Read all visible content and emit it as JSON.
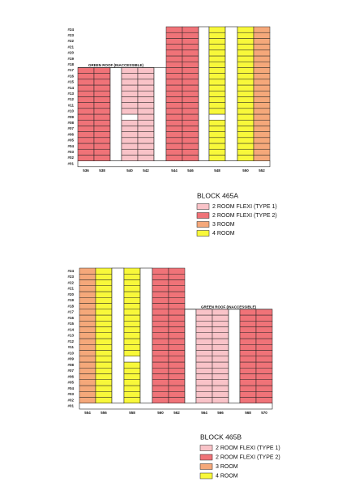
{
  "blocks": [
    {
      "floors": [
        "#24",
        "#23",
        "#22",
        "#21",
        "#20",
        "#19",
        "#18",
        "#17",
        "#16",
        "#15",
        "#14",
        "#13",
        "#12",
        "#11",
        "#10",
        "#09",
        "#08",
        "#07",
        "#06",
        "#05",
        "#04",
        "#03",
        "#02",
        "#01"
      ],
      "units": [
        "536",
        "538",
        "540",
        "542",
        "544",
        "546",
        "548",
        "550",
        "552"
      ],
      "roof_label": "GREEN ROOF (INACCESSIBLE)",
      "legend": {
        "title": "BLOCK 465A",
        "items": [
          "2 ROOM FLEXI (TYPE 1)",
          "2 ROOM FLEXI (TYPE 2)",
          "3 ROOM",
          "4 ROOM"
        ]
      }
    },
    {
      "floors": [
        "#24",
        "#23",
        "#22",
        "#21",
        "#20",
        "#19",
        "#18",
        "#17",
        "#16",
        "#15",
        "#14",
        "#13",
        "#12",
        "#11",
        "#10",
        "#09",
        "#08",
        "#07",
        "#06",
        "#05",
        "#04",
        "#03",
        "#02",
        "#01"
      ],
      "units": [
        "554",
        "556",
        "558",
        "560",
        "562",
        "564",
        "566",
        "568",
        "570"
      ],
      "roof_label": "GREEN ROOF (INACCESSIBLE)",
      "legend": {
        "title": "BLOCK 465B",
        "items": [
          "2 ROOM FLEXI (TYPE 1)",
          "2 ROOM FLEXI (TYPE 2)",
          "3 ROOM",
          "4 ROOM"
        ]
      }
    }
  ]
}
